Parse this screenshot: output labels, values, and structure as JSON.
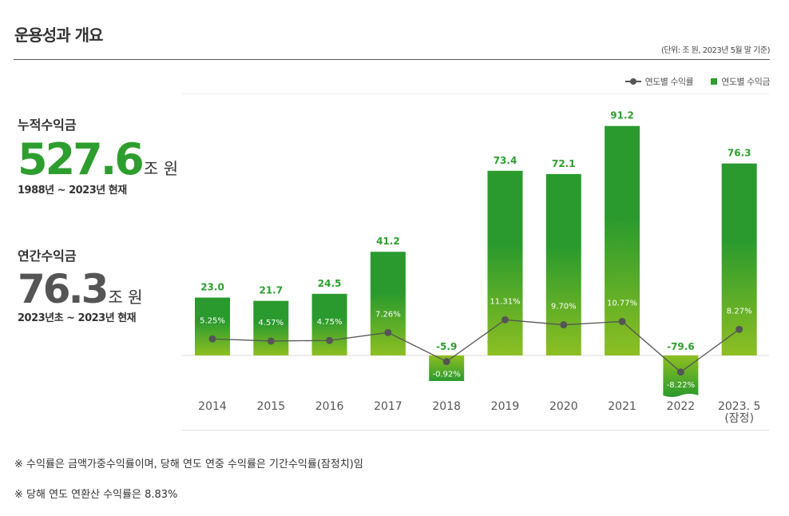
{
  "header": {
    "title": "운용성과 개요",
    "unit_note": "(단위: 조 원, 2023년 5월 말 기준)"
  },
  "legend": {
    "line": "연도별 수익률",
    "bar": "연도별 수익금"
  },
  "cumulative": {
    "label": "누적수익금",
    "value": "527.6",
    "unit": "조 원",
    "period": "1988년 ~ 2023년 현재"
  },
  "annual": {
    "label": "연간수익금",
    "value": "76.3",
    "unit": "조 원",
    "period": "2023년초 ~ 2023년 현재"
  },
  "colors": {
    "bar_top": "#2a9a2e",
    "bar_bottom": "#8dbf22",
    "value_label": "#2d9e2d",
    "line": "#555555"
  },
  "chart_data": {
    "type": "bar",
    "categories": [
      "2014",
      "2015",
      "2016",
      "2017",
      "2018",
      "2019",
      "2020",
      "2021",
      "2022",
      "2023. 5\n(잠정)"
    ],
    "category_lines": [
      [
        "2014"
      ],
      [
        "2015"
      ],
      [
        "2016"
      ],
      [
        "2017"
      ],
      [
        "2018"
      ],
      [
        "2019"
      ],
      [
        "2020"
      ],
      [
        "2021"
      ],
      [
        "2022"
      ],
      [
        "2023. 5",
        "(잠정)"
      ]
    ],
    "series": [
      {
        "name": "연도별 수익금",
        "type": "bar",
        "values": [
          23.0,
          21.7,
          24.5,
          41.2,
          -5.9,
          73.4,
          72.1,
          91.2,
          -79.6,
          76.3
        ],
        "labels": [
          "23.0",
          "21.7",
          "24.5",
          "41.2",
          "-5.9",
          "73.4",
          "72.1",
          "91.2",
          "-79.6",
          "76.3"
        ]
      },
      {
        "name": "연도별 수익률",
        "type": "line",
        "values": [
          5.25,
          4.57,
          4.75,
          7.26,
          -0.92,
          11.31,
          9.7,
          10.77,
          -8.22,
          8.27
        ],
        "labels": [
          "5.25%",
          "4.57%",
          "4.75%",
          "7.26%",
          "-0.92%",
          "11.31%",
          "9.70%",
          "10.77%",
          "-8.22%",
          "8.27%"
        ]
      }
    ],
    "grid": false,
    "legend_position": "top-right"
  },
  "notes": [
    "※ 수익률은 금액가중수익률이며, 당해 연도 연중 수익률은 기간수익률(잠정치)임",
    "※ 당해 연도 연환산 수익률은 8.83%"
  ]
}
